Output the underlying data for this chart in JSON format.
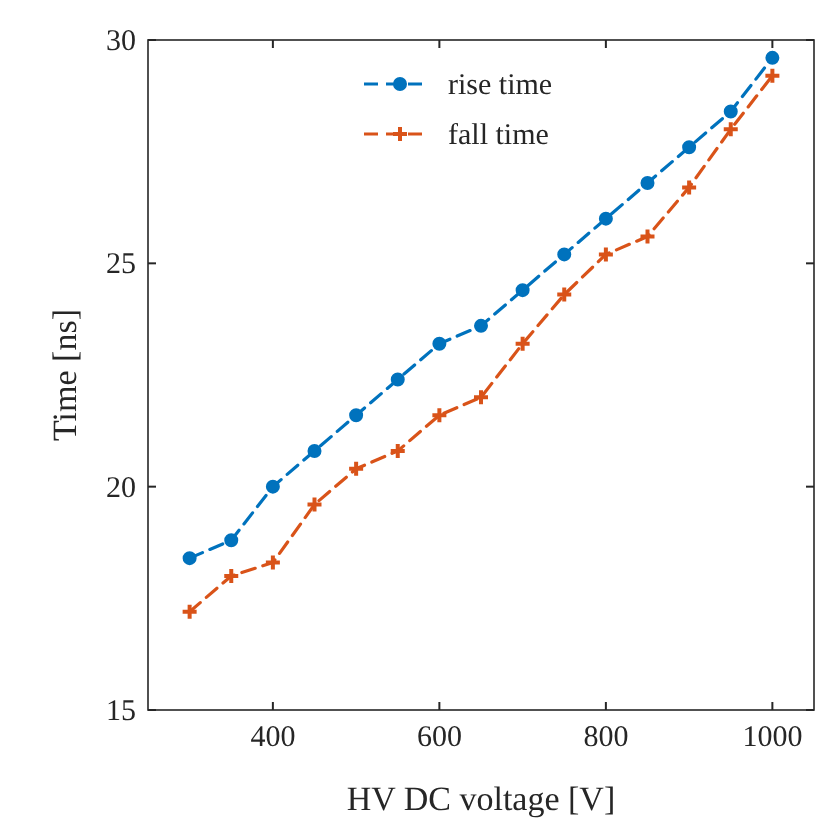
{
  "chart_data": {
    "type": "line",
    "xlabel": "HV DC voltage [V]",
    "ylabel": "Time [ns]",
    "x": [
      300,
      350,
      400,
      450,
      500,
      550,
      600,
      650,
      700,
      750,
      800,
      850,
      900,
      950,
      1000
    ],
    "series": [
      {
        "name": "rise time",
        "color": "#0072bd",
        "marker": "circle",
        "values": [
          18.4,
          18.8,
          20.0,
          20.8,
          21.6,
          22.4,
          23.2,
          23.6,
          24.4,
          25.2,
          26.0,
          26.8,
          27.6,
          28.4,
          29.6
        ]
      },
      {
        "name": "fall time",
        "color": "#d95319",
        "marker": "cross",
        "values": [
          17.2,
          18.0,
          18.3,
          19.6,
          20.4,
          20.8,
          21.6,
          22.0,
          23.2,
          24.3,
          25.2,
          25.6,
          26.7,
          28.0,
          29.2
        ]
      }
    ],
    "xlim": [
      250,
      1050
    ],
    "xticks": [
      400,
      600,
      800,
      1000
    ],
    "ylim": [
      15,
      30
    ],
    "yticks": [
      15,
      20,
      25,
      30
    ],
    "grid": false,
    "legend": "top",
    "line_style": "dashed"
  }
}
